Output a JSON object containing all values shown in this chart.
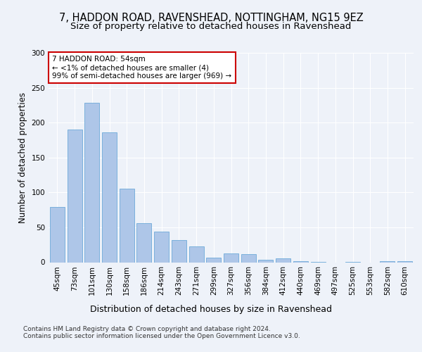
{
  "title1": "7, HADDON ROAD, RAVENSHEAD, NOTTINGHAM, NG15 9EZ",
  "title2": "Size of property relative to detached houses in Ravenshead",
  "xlabel": "Distribution of detached houses by size in Ravenshead",
  "ylabel": "Number of detached properties",
  "categories": [
    "45sqm",
    "73sqm",
    "101sqm",
    "130sqm",
    "158sqm",
    "186sqm",
    "214sqm",
    "243sqm",
    "271sqm",
    "299sqm",
    "327sqm",
    "356sqm",
    "384sqm",
    "412sqm",
    "440sqm",
    "469sqm",
    "497sqm",
    "525sqm",
    "553sqm",
    "582sqm",
    "610sqm"
  ],
  "values": [
    79,
    190,
    228,
    186,
    105,
    56,
    44,
    32,
    23,
    7,
    13,
    12,
    4,
    6,
    2,
    1,
    0,
    1,
    0,
    2,
    2
  ],
  "bar_color": "#aec6e8",
  "bar_edge_color": "#5a9fd4",
  "annotation_box_text": "7 HADDON ROAD: 54sqm\n← <1% of detached houses are smaller (4)\n99% of semi-detached houses are larger (969) →",
  "annotation_box_color": "#ffffff",
  "annotation_box_edge_color": "#cc0000",
  "bg_color": "#eef2f9",
  "plot_bg_color": "#eef2f9",
  "footer": "Contains HM Land Registry data © Crown copyright and database right 2024.\nContains public sector information licensed under the Open Government Licence v3.0.",
  "ylim": [
    0,
    300
  ],
  "yticks": [
    0,
    50,
    100,
    150,
    200,
    250,
    300
  ],
  "title1_fontsize": 10.5,
  "title2_fontsize": 9.5,
  "xlabel_fontsize": 9,
  "ylabel_fontsize": 8.5,
  "tick_fontsize": 7.5,
  "annotation_fontsize": 7.5,
  "footer_fontsize": 6.5
}
